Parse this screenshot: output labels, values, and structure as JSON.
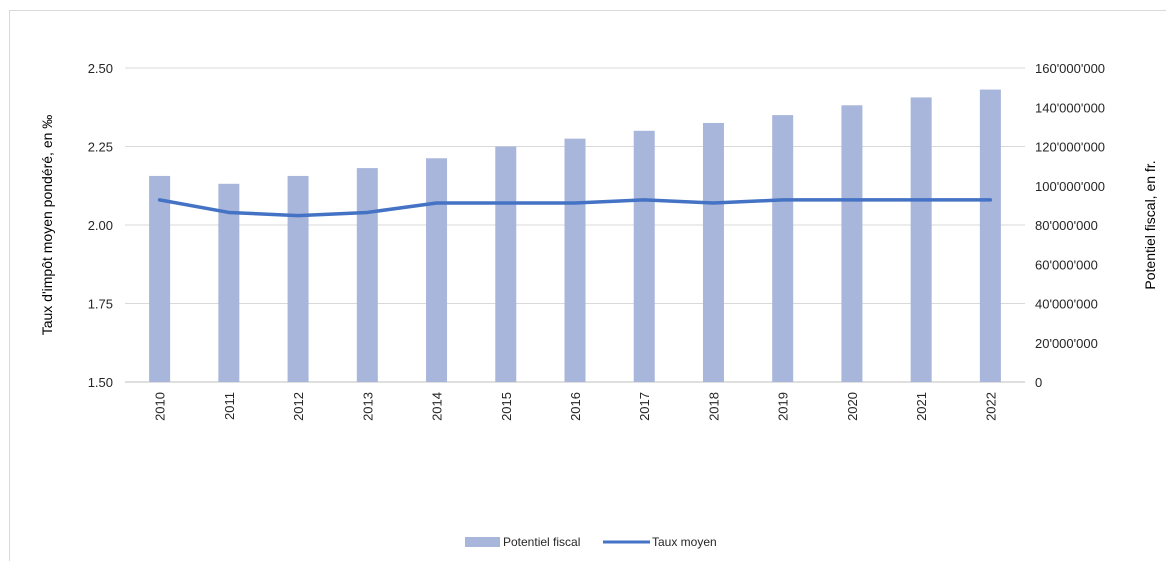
{
  "chart_data": {
    "type": "bar+line",
    "categories": [
      "2010",
      "2011",
      "2012",
      "2013",
      "2014",
      "2015",
      "2016",
      "2017",
      "2018",
      "2019",
      "2020",
      "2021",
      "2022"
    ],
    "series": [
      {
        "name": "Potentiel fiscal",
        "type": "bar",
        "axis": "right",
        "color": "#a9b6db",
        "values": [
          105000000,
          101000000,
          105000000,
          109000000,
          114000000,
          120000000,
          124000000,
          128000000,
          132000000,
          136000000,
          141000000,
          145000000,
          149000000
        ]
      },
      {
        "name": "Taux moyen",
        "type": "line",
        "axis": "left",
        "color": "#4472c4",
        "values": [
          2.08,
          2.04,
          2.03,
          2.04,
          2.07,
          2.07,
          2.07,
          2.08,
          2.07,
          2.08,
          2.08,
          2.08,
          2.08
        ]
      }
    ],
    "y_left": {
      "label": "Taux d'impôt moyen pondéré, en ‰",
      "ylim": [
        1.5,
        2.5
      ],
      "ticks": [
        "1.50",
        "1.75",
        "2.00",
        "2.25",
        "2.50"
      ]
    },
    "y_right": {
      "label": "Potentiel fiscal, en fr.",
      "ylim": [
        0,
        160000000
      ],
      "ticks": [
        "0",
        "20'000'000",
        "40'000'000",
        "60'000'000",
        "80'000'000",
        "100'000'000",
        "120'000'000",
        "140'000'000",
        "160'000'000"
      ]
    },
    "grid": true,
    "legend_position": "bottom"
  }
}
